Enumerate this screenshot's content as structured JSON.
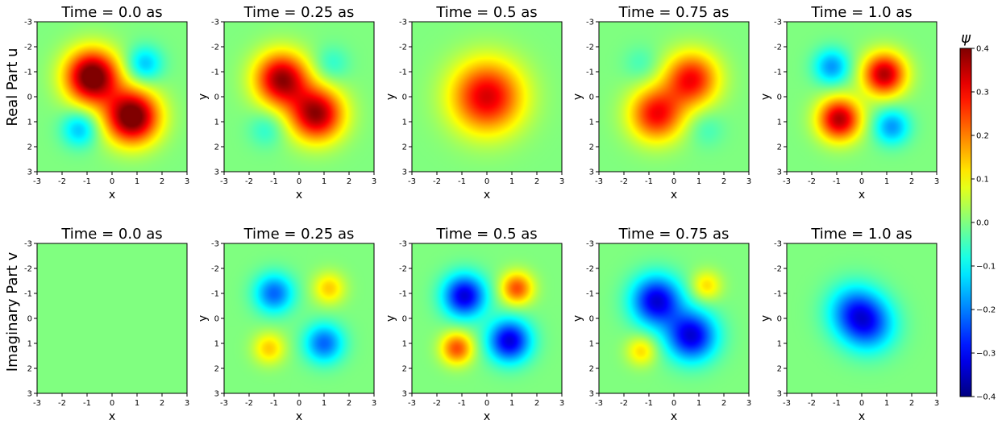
{
  "chart_data": {
    "type": "heatmap",
    "colormap": "jet",
    "row_labels": [
      "Real Part u",
      "Imaginary Part v"
    ],
    "column_titles": [
      "Time = 0.0 as",
      "Time = 0.25 as",
      "Time = 0.5 as",
      "Time = 0.75 as",
      "Time = 1.0 as"
    ],
    "xlabel": "x",
    "ylabel": "y",
    "x_ticks": [
      "-3",
      "-2",
      "-1",
      "0",
      "1",
      "2",
      "3"
    ],
    "y_ticks": [
      "-3",
      "-2",
      "-1",
      "0",
      "1",
      "2",
      "3"
    ],
    "xlim": [
      -3,
      3
    ],
    "ylim": [
      3,
      -3
    ],
    "colorbar": {
      "label": "ψ",
      "vmin": -0.4,
      "vmax": 0.4,
      "ticks": [
        "0.4",
        "0.3",
        "0.2",
        "0.1",
        "0.0",
        "−0.1",
        "−0.2",
        "−0.3",
        "−0.4"
      ],
      "tick_values": [
        0.4,
        0.3,
        0.2,
        0.1,
        0.0,
        -0.1,
        -0.2,
        -0.3,
        -0.4
      ]
    },
    "panels": [
      {
        "row": 0,
        "col": 0,
        "component": "real",
        "time": 0.0,
        "lobes": [
          {
            "x": -0.8,
            "y": -0.8,
            "value": 0.45,
            "sigma": 0.75
          },
          {
            "x": 0.8,
            "y": 0.8,
            "value": 0.45,
            "sigma": 0.75
          },
          {
            "x": -1.3,
            "y": 1.3,
            "value": -0.15,
            "sigma": 0.5
          },
          {
            "x": 1.3,
            "y": -1.3,
            "value": -0.15,
            "sigma": 0.5
          }
        ]
      },
      {
        "row": 0,
        "col": 1,
        "component": "real",
        "time": 0.25,
        "lobes": [
          {
            "x": -0.7,
            "y": -0.7,
            "value": 0.38,
            "sigma": 0.75
          },
          {
            "x": 0.7,
            "y": 0.7,
            "value": 0.38,
            "sigma": 0.75
          },
          {
            "x": -1.3,
            "y": 1.3,
            "value": -0.07,
            "sigma": 0.5
          },
          {
            "x": 1.3,
            "y": -1.3,
            "value": -0.07,
            "sigma": 0.5
          }
        ]
      },
      {
        "row": 0,
        "col": 2,
        "component": "real",
        "time": 0.5,
        "lobes": [
          {
            "x": 0.0,
            "y": 0.0,
            "value": 0.33,
            "sigma": 1.0
          }
        ]
      },
      {
        "row": 0,
        "col": 3,
        "component": "real",
        "time": 0.75,
        "lobes": [
          {
            "x": -0.7,
            "y": 0.7,
            "value": 0.3,
            "sigma": 0.75
          },
          {
            "x": 0.7,
            "y": -0.7,
            "value": 0.3,
            "sigma": 0.75
          },
          {
            "x": -1.3,
            "y": -1.3,
            "value": -0.05,
            "sigma": 0.5
          },
          {
            "x": 1.3,
            "y": 1.3,
            "value": -0.05,
            "sigma": 0.5
          }
        ]
      },
      {
        "row": 0,
        "col": 4,
        "component": "real",
        "time": 1.0,
        "lobes": [
          {
            "x": -0.9,
            "y": 0.9,
            "value": 0.36,
            "sigma": 0.6
          },
          {
            "x": 0.9,
            "y": -0.9,
            "value": 0.36,
            "sigma": 0.6
          },
          {
            "x": -1.2,
            "y": -1.2,
            "value": -0.18,
            "sigma": 0.5
          },
          {
            "x": 1.2,
            "y": 1.2,
            "value": -0.18,
            "sigma": 0.5
          }
        ]
      },
      {
        "row": 1,
        "col": 0,
        "component": "imaginary",
        "time": 0.0,
        "lobes": []
      },
      {
        "row": 1,
        "col": 1,
        "component": "imaginary",
        "time": 0.25,
        "lobes": [
          {
            "x": -1.0,
            "y": -1.0,
            "value": -0.22,
            "sigma": 0.55
          },
          {
            "x": 1.0,
            "y": 1.0,
            "value": -0.22,
            "sigma": 0.55
          },
          {
            "x": 1.2,
            "y": -1.2,
            "value": 0.14,
            "sigma": 0.45
          },
          {
            "x": -1.2,
            "y": 1.2,
            "value": 0.14,
            "sigma": 0.45
          }
        ]
      },
      {
        "row": 1,
        "col": 2,
        "component": "imaginary",
        "time": 0.5,
        "lobes": [
          {
            "x": -0.9,
            "y": -0.9,
            "value": -0.33,
            "sigma": 0.6
          },
          {
            "x": 0.9,
            "y": 0.9,
            "value": -0.33,
            "sigma": 0.6
          },
          {
            "x": 1.2,
            "y": -1.2,
            "value": 0.24,
            "sigma": 0.45
          },
          {
            "x": -1.2,
            "y": 1.2,
            "value": 0.24,
            "sigma": 0.45
          }
        ]
      },
      {
        "row": 1,
        "col": 3,
        "component": "imaginary",
        "time": 0.75,
        "lobes": [
          {
            "x": -0.7,
            "y": -0.7,
            "value": -0.33,
            "sigma": 0.7
          },
          {
            "x": 0.7,
            "y": 0.7,
            "value": -0.33,
            "sigma": 0.7
          },
          {
            "x": 1.3,
            "y": -1.3,
            "value": 0.13,
            "sigma": 0.42
          },
          {
            "x": -1.3,
            "y": 1.3,
            "value": 0.13,
            "sigma": 0.42
          }
        ]
      },
      {
        "row": 1,
        "col": 4,
        "component": "imaginary",
        "time": 1.0,
        "lobes": [
          {
            "x": -0.3,
            "y": -0.3,
            "value": -0.2,
            "sigma": 0.75
          },
          {
            "x": 0.3,
            "y": 0.3,
            "value": -0.2,
            "sigma": 0.75
          }
        ]
      }
    ]
  }
}
